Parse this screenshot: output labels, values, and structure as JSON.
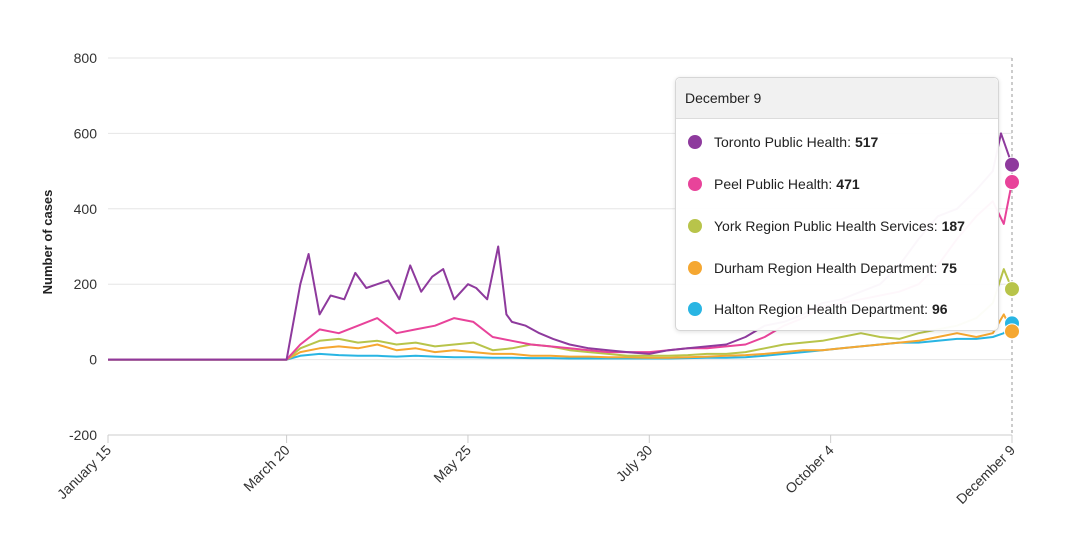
{
  "chart_data": {
    "type": "line",
    "title": "",
    "xlabel": "",
    "ylabel": "Number of cases",
    "ylim": [
      -200,
      800
    ],
    "yticks": [
      -200,
      0,
      200,
      400,
      600,
      800
    ],
    "xlim": [
      "January 15",
      "December 9"
    ],
    "xticks": [
      "January 15",
      "March 20",
      "May 25",
      "July 30",
      "October 4",
      "December 9"
    ],
    "grid": "horizontal",
    "series": [
      {
        "name": "Toronto Public Health",
        "color": "#8e3a9d",
        "x": [
          "January 15",
          "March 20",
          "March 25",
          "March 28",
          "April 1",
          "April 5",
          "April 10",
          "April 14",
          "April 18",
          "April 22",
          "April 26",
          "April 30",
          "May 4",
          "May 8",
          "May 12",
          "May 16",
          "May 20",
          "May 25",
          "May 28",
          "June 1",
          "June 5",
          "June 8",
          "June 10",
          "June 15",
          "June 20",
          "June 25",
          "July 1",
          "July 8",
          "July 15",
          "July 22",
          "July 30",
          "August 6",
          "August 13",
          "August 20",
          "August 27",
          "September 3",
          "September 10",
          "September 17",
          "September 24",
          "October 1",
          "October 8",
          "October 15",
          "October 22",
          "October 29",
          "November 5",
          "November 12",
          "November 19",
          "November 26",
          "December 2",
          "December 5",
          "December 9"
        ],
        "y": [
          0,
          0,
          200,
          280,
          120,
          170,
          160,
          230,
          190,
          200,
          210,
          160,
          250,
          180,
          220,
          240,
          160,
          200,
          190,
          160,
          300,
          120,
          100,
          90,
          70,
          55,
          40,
          30,
          25,
          20,
          15,
          25,
          30,
          35,
          40,
          60,
          90,
          100,
          120,
          150,
          160,
          180,
          200,
          250,
          320,
          380,
          400,
          450,
          500,
          600,
          517
        ]
      },
      {
        "name": "Peel Public Health",
        "color": "#e8439a",
        "x": [
          "January 15",
          "March 20",
          "March 25",
          "April 1",
          "April 8",
          "April 15",
          "April 22",
          "April 29",
          "May 6",
          "May 13",
          "May 20",
          "May 27",
          "June 3",
          "June 10",
          "June 17",
          "June 24",
          "July 1",
          "July 8",
          "July 15",
          "July 22",
          "July 30",
          "August 6",
          "August 13",
          "August 20",
          "August 27",
          "September 3",
          "September 10",
          "September 17",
          "September 24",
          "October 1",
          "October 8",
          "October 15",
          "October 22",
          "October 29",
          "November 5",
          "November 12",
          "November 19",
          "November 26",
          "December 2",
          "December 6",
          "December 9"
        ],
        "y": [
          0,
          0,
          40,
          80,
          70,
          90,
          110,
          70,
          80,
          90,
          110,
          100,
          60,
          50,
          40,
          35,
          30,
          25,
          20,
          20,
          20,
          25,
          30,
          30,
          35,
          40,
          60,
          90,
          110,
          140,
          150,
          160,
          170,
          180,
          200,
          250,
          320,
          380,
          420,
          360,
          471
        ]
      },
      {
        "name": "York Region Public Health Services",
        "color": "#b8c44a",
        "x": [
          "January 15",
          "March 20",
          "March 25",
          "April 1",
          "April 8",
          "April 15",
          "April 22",
          "April 29",
          "May 6",
          "May 13",
          "May 20",
          "May 27",
          "June 3",
          "June 10",
          "June 17",
          "June 24",
          "July 1",
          "July 8",
          "July 15",
          "July 22",
          "July 30",
          "August 6",
          "August 13",
          "August 20",
          "August 27",
          "September 3",
          "September 10",
          "September 17",
          "September 24",
          "October 1",
          "October 8",
          "October 15",
          "October 22",
          "October 29",
          "November 5",
          "November 12",
          "November 19",
          "November 26",
          "December 2",
          "December 6",
          "December 9"
        ],
        "y": [
          0,
          0,
          30,
          50,
          55,
          45,
          50,
          40,
          45,
          35,
          40,
          45,
          25,
          30,
          40,
          35,
          25,
          20,
          15,
          10,
          10,
          10,
          12,
          15,
          15,
          20,
          30,
          40,
          45,
          50,
          60,
          70,
          60,
          55,
          70,
          80,
          90,
          110,
          150,
          240,
          187
        ]
      },
      {
        "name": "Durham Region Health Department",
        "color": "#f5a731",
        "x": [
          "January 15",
          "March 20",
          "March 25",
          "April 1",
          "April 8",
          "April 15",
          "April 22",
          "April 29",
          "May 6",
          "May 13",
          "May 20",
          "May 27",
          "June 3",
          "June 10",
          "June 17",
          "June 24",
          "July 1",
          "July 8",
          "July 15",
          "July 22",
          "July 30",
          "August 6",
          "August 13",
          "August 20",
          "August 27",
          "September 3",
          "September 10",
          "September 17",
          "September 24",
          "October 1",
          "October 8",
          "October 15",
          "October 22",
          "October 29",
          "November 5",
          "November 12",
          "November 19",
          "November 26",
          "December 2",
          "December 6",
          "December 9"
        ],
        "y": [
          0,
          0,
          20,
          30,
          35,
          30,
          40,
          25,
          30,
          20,
          25,
          20,
          15,
          15,
          10,
          10,
          8,
          8,
          6,
          6,
          5,
          5,
          6,
          8,
          10,
          12,
          15,
          20,
          25,
          25,
          30,
          35,
          40,
          45,
          50,
          60,
          70,
          60,
          70,
          120,
          75
        ]
      },
      {
        "name": "Halton Region Health Department",
        "color": "#29b5e3",
        "x": [
          "January 15",
          "March 20",
          "March 25",
          "April 1",
          "April 8",
          "April 15",
          "April 22",
          "April 29",
          "May 6",
          "May 13",
          "May 20",
          "May 27",
          "June 3",
          "June 10",
          "June 17",
          "June 24",
          "July 1",
          "July 8",
          "July 15",
          "July 22",
          "July 30",
          "August 6",
          "August 13",
          "August 20",
          "August 27",
          "September 3",
          "September 10",
          "September 17",
          "September 24",
          "October 1",
          "October 8",
          "October 15",
          "October 22",
          "October 29",
          "November 5",
          "November 12",
          "November 19",
          "November 26",
          "December 2",
          "December 6",
          "December 9"
        ],
        "y": [
          0,
          0,
          10,
          15,
          12,
          10,
          10,
          8,
          10,
          8,
          6,
          6,
          5,
          5,
          4,
          4,
          3,
          3,
          3,
          3,
          3,
          3,
          4,
          5,
          5,
          6,
          10,
          15,
          20,
          25,
          30,
          35,
          40,
          45,
          45,
          50,
          55,
          55,
          60,
          70,
          96
        ]
      }
    ]
  },
  "tooltip": {
    "date": "December 9",
    "rows": [
      {
        "label": "Toronto Public Health:",
        "value": "517",
        "color": "#8e3a9d"
      },
      {
        "label": "Peel Public Health:",
        "value": "471",
        "color": "#e8439a"
      },
      {
        "label": "York Region Public Health Services:",
        "value": "187",
        "color": "#b8c44a"
      },
      {
        "label": "Durham Region Health Department:",
        "value": "75",
        "color": "#f5a731"
      },
      {
        "label": "Halton Region Health Department:",
        "value": "96",
        "color": "#29b5e3"
      }
    ]
  }
}
